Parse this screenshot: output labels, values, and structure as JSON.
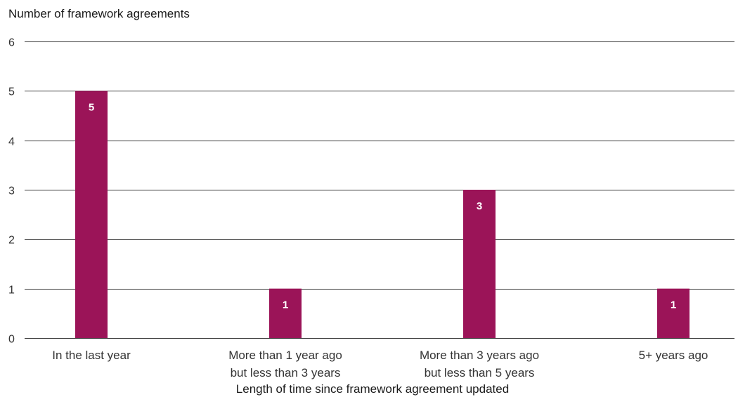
{
  "chart_data": {
    "type": "bar",
    "ylabel": "Number of framework agreements",
    "xlabel": "Length of time since framework agreement updated",
    "categories": [
      [
        "In the last year"
      ],
      [
        "More than 1 year ago",
        "but less than 3 years"
      ],
      [
        "More than 3 years ago",
        "but less than 5 years"
      ],
      [
        "5+ years ago"
      ]
    ],
    "values": [
      5,
      1,
      3,
      1
    ],
    "data_labels": [
      "5",
      "1",
      "3",
      "1"
    ],
    "ylim": [
      0,
      6
    ],
    "yticks": [
      0,
      1,
      2,
      3,
      4,
      5,
      6
    ],
    "grid": true,
    "bar_color": "#9b1458",
    "label_color": "#ffffff"
  }
}
